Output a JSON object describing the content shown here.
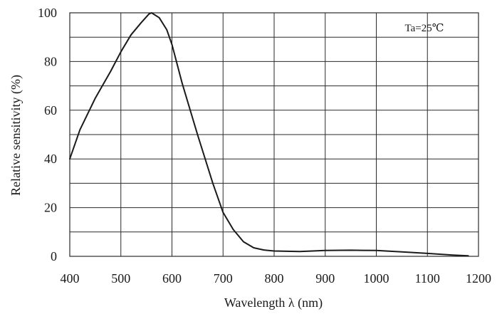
{
  "chart_data": {
    "type": "line",
    "title": "",
    "xlabel": "Wavelength λ (nm)",
    "ylabel": "Relative sensitivity (%)",
    "xlim": [
      400,
      1200
    ],
    "ylim": [
      0,
      100
    ],
    "x_ticks": [
      400,
      500,
      600,
      700,
      800,
      900,
      1000,
      1100,
      1200
    ],
    "y_ticks": [
      0,
      20,
      40,
      60,
      80,
      100
    ],
    "x_grid_step": 100,
    "y_grid_step": 10,
    "grid": true,
    "legend": "none",
    "annotation": "Ta=25℃",
    "annotation_position": "top-right",
    "series": [
      {
        "x": [
          400,
          420,
          450,
          480,
          500,
          520,
          540,
          555,
          560,
          575,
          590,
          600,
          620,
          650,
          680,
          700,
          720,
          740,
          760,
          780,
          800,
          850,
          900,
          950,
          1000,
          1050,
          1100,
          1150,
          1180
        ],
        "values": [
          40,
          52,
          65,
          76,
          84,
          91,
          96,
          99.5,
          100,
          98,
          93,
          87,
          71,
          50,
          30,
          18,
          11,
          6,
          3.5,
          2.6,
          2.2,
          2.0,
          2.4,
          2.5,
          2.4,
          1.8,
          1.2,
          0.5,
          0.2
        ]
      }
    ],
    "colors": {
      "line": "#1a1a1a",
      "grid": "#2a2a2a",
      "background": "#ffffff"
    }
  }
}
